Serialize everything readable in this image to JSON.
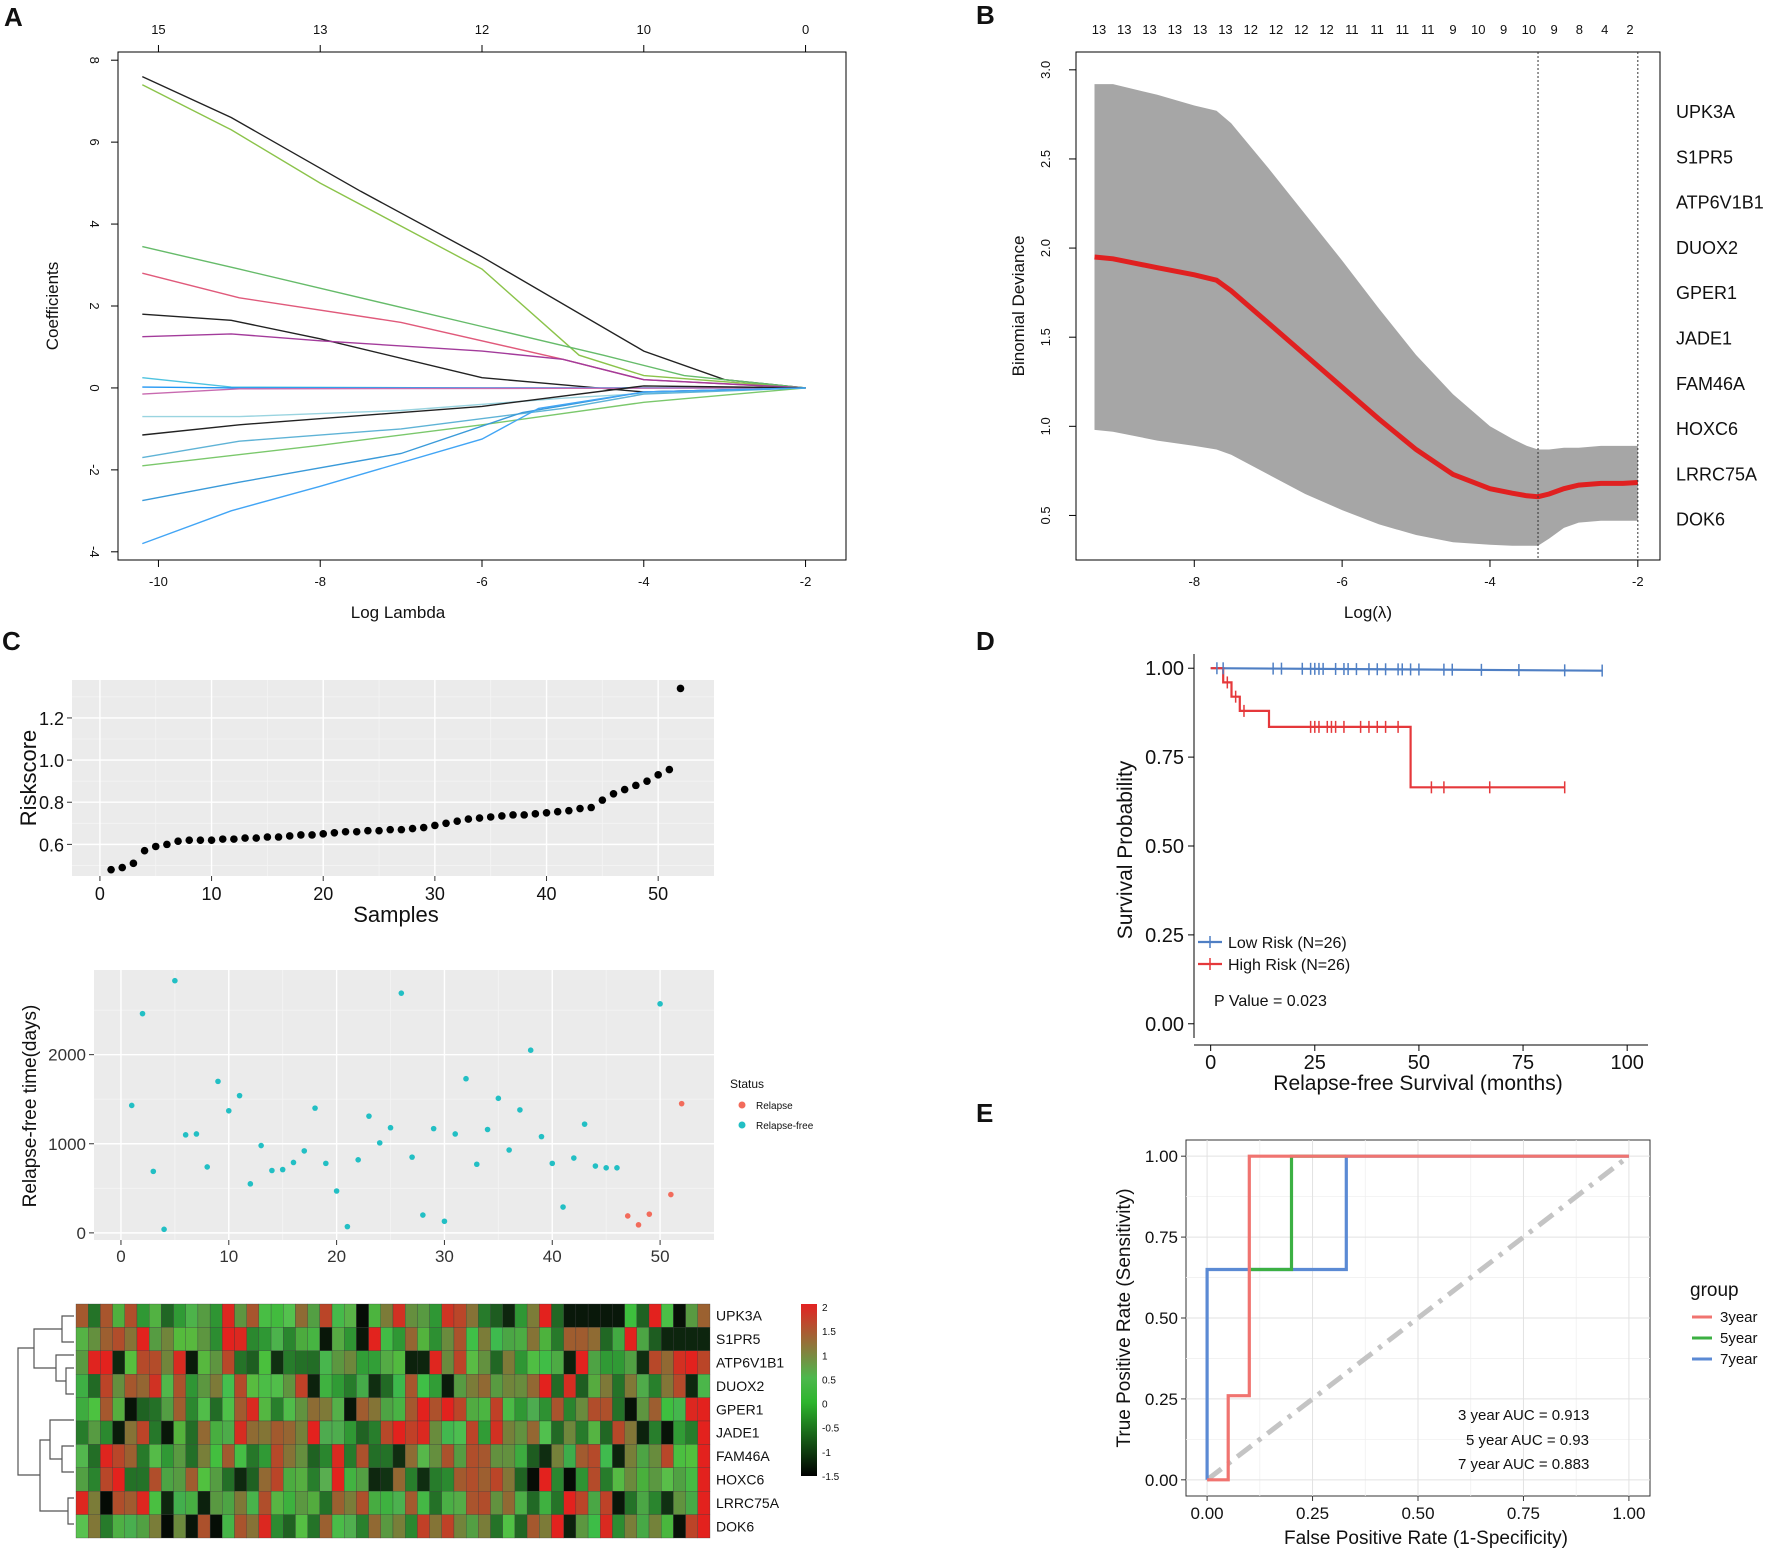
{
  "panel_labels": [
    "A",
    "B",
    "C",
    "D",
    "E"
  ],
  "chart_data": [
    {
      "id": "A",
      "type": "line",
      "xlabel": "Log Lambda",
      "ylabel": "Coefficients",
      "xlim": [
        -10.5,
        -1.5
      ],
      "ylim": [
        -4.2,
        8.2
      ],
      "x_ticks": [
        "-10",
        "-8",
        "-6",
        "-4",
        "-2"
      ],
      "y_ticks": [
        "-4",
        "-2",
        "0",
        "2",
        "4",
        "6",
        "8"
      ],
      "top_axis": [
        {
          "x": -10,
          "label": "15"
        },
        {
          "x": -8,
          "label": "13"
        },
        {
          "x": -6,
          "label": "12"
        },
        {
          "x": -4,
          "label": "10"
        },
        {
          "x": -2,
          "label": "0"
        }
      ],
      "series": [
        {
          "color": "#222222",
          "points": [
            [
              -10.2,
              7.6
            ],
            [
              -9.1,
              6.6
            ],
            [
              -7.5,
              4.8
            ],
            [
              -6,
              3.2
            ],
            [
              -4,
              0.9
            ],
            [
              -3,
              0.2
            ],
            [
              -2,
              0
            ]
          ]
        },
        {
          "color": "#8bc34a",
          "points": [
            [
              -10.2,
              7.4
            ],
            [
              -9.1,
              6.3
            ],
            [
              -8,
              5.0
            ],
            [
              -6,
              2.9
            ],
            [
              -4.8,
              0.8
            ],
            [
              -4,
              0.3
            ],
            [
              -2,
              0
            ]
          ]
        },
        {
          "color": "#66bb6a",
          "points": [
            [
              -10.2,
              3.45
            ],
            [
              -9,
              2.9
            ],
            [
              -6,
              1.5
            ],
            [
              -4.5,
              0.8
            ],
            [
              -3.5,
              0.3
            ],
            [
              -2,
              0
            ]
          ]
        },
        {
          "color": "#e05a7b",
          "points": [
            [
              -10.2,
              2.8
            ],
            [
              -9,
              2.2
            ],
            [
              -7,
              1.6
            ],
            [
              -5,
              0.7
            ],
            [
              -4,
              0.2
            ],
            [
              -2,
              0
            ]
          ]
        },
        {
          "color": "#222222",
          "points": [
            [
              -10.2,
              1.8
            ],
            [
              -9.1,
              1.65
            ],
            [
              -8,
              1.2
            ],
            [
              -6,
              0.25
            ],
            [
              -4,
              -0.1
            ],
            [
              -2,
              0
            ]
          ]
        },
        {
          "color": "#a33b9b",
          "points": [
            [
              -10.2,
              1.25
            ],
            [
              -9.1,
              1.32
            ],
            [
              -8,
              1.15
            ],
            [
              -6,
              0.9
            ],
            [
              -5,
              0.7
            ],
            [
              -4,
              0.2
            ],
            [
              -2,
              0
            ]
          ]
        },
        {
          "color": "#4fc3e0",
          "points": [
            [
              -10.2,
              0.25
            ],
            [
              -9.1,
              0.02
            ],
            [
              -6,
              0.0
            ],
            [
              -2,
              0
            ]
          ]
        },
        {
          "color": "#2196f3",
          "points": [
            [
              -10.2,
              0.02
            ],
            [
              -9,
              0.0
            ],
            [
              -2,
              0
            ]
          ]
        },
        {
          "color": "#c86ab0",
          "points": [
            [
              -10.2,
              -0.15
            ],
            [
              -9,
              -0.02
            ],
            [
              -2,
              0
            ]
          ]
        },
        {
          "color": "#9ad4e0",
          "points": [
            [
              -10.2,
              -0.7
            ],
            [
              -9,
              -0.7
            ],
            [
              -7,
              -0.55
            ],
            [
              -5,
              -0.25
            ],
            [
              -3.5,
              -0.08
            ],
            [
              -2,
              0
            ]
          ]
        },
        {
          "color": "#222222",
          "points": [
            [
              -10.2,
              -1.15
            ],
            [
              -9,
              -0.9
            ],
            [
              -6,
              -0.45
            ],
            [
              -4,
              0.05
            ],
            [
              -2,
              0
            ]
          ]
        },
        {
          "color": "#5fb3d6",
          "points": [
            [
              -10.2,
              -1.7
            ],
            [
              -9,
              -1.3
            ],
            [
              -7,
              -1.0
            ],
            [
              -5,
              -0.5
            ],
            [
              -4,
              -0.15
            ],
            [
              -2,
              0
            ]
          ]
        },
        {
          "color": "#7bc86c",
          "points": [
            [
              -10.2,
              -1.9
            ],
            [
              -8,
              -1.4
            ],
            [
              -6,
              -0.9
            ],
            [
              -4,
              -0.35
            ],
            [
              -2,
              0
            ]
          ]
        },
        {
          "color": "#3a9ad9",
          "points": [
            [
              -10.2,
              -2.75
            ],
            [
              -9,
              -2.3
            ],
            [
              -7,
              -1.6
            ],
            [
              -5.5,
              -0.6
            ],
            [
              -4,
              -0.1
            ],
            [
              -2,
              0
            ]
          ]
        },
        {
          "color": "#42a5f5",
          "points": [
            [
              -10.2,
              -3.8
            ],
            [
              -9.1,
              -3.0
            ],
            [
              -8,
              -2.4
            ],
            [
              -6,
              -1.25
            ],
            [
              -5.3,
              -0.5
            ],
            [
              -4,
              -0.1
            ],
            [
              -2,
              0
            ]
          ]
        }
      ]
    },
    {
      "id": "B",
      "type": "line",
      "xlabel": "Log(λ)",
      "ylabel": "Binomial Deviance",
      "xlim": [
        -9.6,
        -1.7
      ],
      "ylim": [
        0.25,
        3.1
      ],
      "x_ticks": [
        "-8",
        "-6",
        "-4",
        "-2"
      ],
      "y_ticks": [
        "0.5",
        "1.0",
        "1.5",
        "2.0",
        "2.5",
        "3.0"
      ],
      "top_axis": [
        "13",
        "13",
        "13",
        "13",
        "13",
        "13",
        "12",
        "12",
        "12",
        "12",
        "11",
        "11",
        "11",
        "11",
        "9",
        "10",
        "9",
        "10",
        "9",
        "8",
        "4",
        "2"
      ],
      "vlines": [
        -3.35,
        -2.0
      ],
      "x": [
        -9.35,
        -9.1,
        -8.5,
        -8.0,
        -7.7,
        -7.5,
        -7.0,
        -6.5,
        -6.0,
        -5.5,
        -5.0,
        -4.5,
        -4.0,
        -3.7,
        -3.5,
        -3.35,
        -3.2,
        -3.0,
        -2.8,
        -2.5,
        -2.2,
        -2.0
      ],
      "mean": [
        1.95,
        1.94,
        1.89,
        1.85,
        1.82,
        1.76,
        1.58,
        1.4,
        1.22,
        1.04,
        0.87,
        0.73,
        0.65,
        0.625,
        0.61,
        0.605,
        0.62,
        0.65,
        0.67,
        0.68,
        0.68,
        0.685
      ],
      "upper": [
        2.92,
        2.92,
        2.86,
        2.8,
        2.77,
        2.7,
        2.45,
        2.19,
        1.93,
        1.66,
        1.4,
        1.18,
        1.0,
        0.93,
        0.89,
        0.87,
        0.87,
        0.88,
        0.88,
        0.89,
        0.89,
        0.89
      ],
      "lower": [
        0.98,
        0.97,
        0.92,
        0.89,
        0.87,
        0.84,
        0.73,
        0.62,
        0.53,
        0.45,
        0.39,
        0.35,
        0.335,
        0.33,
        0.33,
        0.33,
        0.37,
        0.43,
        0.46,
        0.47,
        0.47,
        0.47
      ],
      "band_color": "#a6a6a6",
      "line_color": "#e02020",
      "gene_list": [
        "UPK3A",
        "S1PR5",
        "ATP6V1B1",
        "DUOX2",
        "GPER1",
        "JADE1",
        "FAM46A",
        "HOXC6",
        "LRRC75A",
        "DOK6"
      ]
    },
    {
      "id": "C1",
      "type": "scatter",
      "xlabel": "Samples",
      "ylabel": "Riskscore",
      "xlim": [
        -2.5,
        55
      ],
      "ylim": [
        0.45,
        1.38
      ],
      "x_ticks": [
        "0",
        "10",
        "20",
        "30",
        "40",
        "50"
      ],
      "y_ticks": [
        "0.6",
        "0.8",
        "1.0",
        "1.2"
      ],
      "x": [
        1,
        2,
        3,
        4,
        5,
        6,
        7,
        8,
        9,
        10,
        11,
        12,
        13,
        14,
        15,
        16,
        17,
        18,
        19,
        20,
        21,
        22,
        23,
        24,
        25,
        26,
        27,
        28,
        29,
        30,
        31,
        32,
        33,
        34,
        35,
        36,
        37,
        38,
        39,
        40,
        41,
        42,
        43,
        44,
        45,
        46,
        47,
        48,
        49,
        50,
        51,
        52
      ],
      "y": [
        0.48,
        0.49,
        0.51,
        0.57,
        0.59,
        0.6,
        0.615,
        0.62,
        0.62,
        0.62,
        0.625,
        0.625,
        0.63,
        0.63,
        0.635,
        0.635,
        0.64,
        0.645,
        0.645,
        0.65,
        0.655,
        0.66,
        0.66,
        0.665,
        0.665,
        0.67,
        0.67,
        0.675,
        0.68,
        0.69,
        0.7,
        0.71,
        0.72,
        0.725,
        0.73,
        0.735,
        0.74,
        0.74,
        0.745,
        0.75,
        0.755,
        0.76,
        0.77,
        0.775,
        0.81,
        0.84,
        0.86,
        0.88,
        0.9,
        0.93,
        0.955,
        1.34
      ]
    },
    {
      "id": "C2",
      "type": "scatter",
      "xlabel": "",
      "ylabel": "Relapse-free time(days)",
      "xlim": [
        -2.5,
        55
      ],
      "ylim": [
        -80,
        2950
      ],
      "x_ticks": [
        "0",
        "10",
        "20",
        "30",
        "40",
        "50"
      ],
      "y_ticks": [
        "0",
        "1000",
        "2000"
      ],
      "legend_title": "Status",
      "legend": [
        {
          "name": "Relapse",
          "color": "#f26b5b"
        },
        {
          "name": "Relapse-free",
          "color": "#22bfc4"
        }
      ],
      "x": [
        1,
        2,
        3,
        4,
        5,
        6,
        7,
        8,
        9,
        10,
        11,
        12,
        13,
        14,
        15,
        16,
        17,
        18,
        19,
        20,
        21,
        22,
        23,
        24,
        25,
        26,
        27,
        28,
        29,
        30,
        31,
        32,
        33,
        34,
        35,
        36,
        37,
        38,
        39,
        40,
        41,
        42,
        43,
        44,
        45,
        46,
        47,
        48,
        49,
        50,
        51,
        52
      ],
      "y": [
        1430,
        2460,
        690,
        40,
        2830,
        1100,
        1110,
        740,
        1700,
        1370,
        1540,
        550,
        980,
        700,
        710,
        790,
        920,
        1400,
        780,
        470,
        70,
        820,
        1310,
        1010,
        1180,
        2690,
        850,
        200,
        1170,
        130,
        1110,
        1730,
        770,
        1160,
        1510,
        930,
        1380,
        2050,
        1080,
        780,
        290,
        840,
        1220,
        750,
        730,
        730,
        190,
        90,
        210,
        2570,
        430,
        1450
      ],
      "status": [
        "F",
        "F",
        "F",
        "F",
        "F",
        "F",
        "F",
        "F",
        "F",
        "F",
        "F",
        "F",
        "F",
        "F",
        "F",
        "F",
        "F",
        "F",
        "F",
        "F",
        "F",
        "F",
        "F",
        "F",
        "F",
        "F",
        "F",
        "F",
        "F",
        "F",
        "F",
        "F",
        "F",
        "F",
        "F",
        "F",
        "F",
        "F",
        "F",
        "F",
        "F",
        "F",
        "F",
        "F",
        "F",
        "F",
        "R",
        "R",
        "R",
        "F",
        "R",
        "R"
      ]
    },
    {
      "id": "C3",
      "type": "heatmap",
      "rows": [
        "UPK3A",
        "S1PR5",
        "ATP6V1B1",
        "DUOX2",
        "GPER1",
        "JADE1",
        "FAM46A",
        "HOXC6",
        "LRRC75A",
        "DOK6"
      ],
      "n_cols": 52,
      "scale_ticks": [
        "2",
        "1.5",
        "1",
        "0.5",
        "0",
        "-0.5",
        "-1",
        "-1.5"
      ],
      "scale_range": [
        -1.5,
        2
      ]
    },
    {
      "id": "D",
      "type": "line",
      "xlabel": "Relapse-free Survival (months)",
      "ylabel": "Survival Probability",
      "xlim": [
        -4,
        105
      ],
      "ylim": [
        -0.04,
        1.04
      ],
      "x_ticks": [
        "0",
        "25",
        "50",
        "75",
        "100"
      ],
      "y_ticks": [
        "0.00",
        "0.25",
        "0.50",
        "0.75",
        "1.00"
      ],
      "series": [
        {
          "name": "Low Risk (N=26)",
          "color": "#4f7fc4",
          "x": [
            0,
            94
          ],
          "y": [
            1.0,
            0.993
          ]
        },
        {
          "name": "High Risk (N=26)",
          "color": "#e5383b",
          "x": [
            0,
            3,
            3,
            5,
            5,
            7,
            7,
            14,
            14,
            48,
            48,
            85
          ],
          "y": [
            1.0,
            1.0,
            0.96,
            0.96,
            0.92,
            0.92,
            0.88,
            0.88,
            0.835,
            0.835,
            0.665,
            0.665
          ]
        }
      ],
      "p_value": "P Value = 0.023"
    },
    {
      "id": "E",
      "type": "line",
      "xlabel": "False Positive Rate (1-Specificity)",
      "ylabel": "True Positive Rate (Sensitivity)",
      "xlim": [
        -0.05,
        1.05
      ],
      "ylim": [
        -0.05,
        1.05
      ],
      "x_ticks": [
        "0.00",
        "0.25",
        "0.50",
        "0.75",
        "1.00"
      ],
      "y_ticks": [
        "0.00",
        "0.25",
        "0.50",
        "0.75",
        "1.00"
      ],
      "legend_title": "group",
      "series": [
        {
          "name": "3year",
          "color": "#f07470",
          "x": [
            0,
            0.05,
            0.05,
            0.1,
            0.1,
            0.2,
            1
          ],
          "y": [
            0,
            0,
            0.26,
            0.26,
            1.0,
            1.0,
            1.0
          ]
        },
        {
          "name": "5year",
          "color": "#3cb043",
          "x": [
            0.1,
            0.2,
            0.2,
            0.33
          ],
          "y": [
            0.65,
            0.65,
            1.0,
            1.0
          ]
        },
        {
          "name": "7year",
          "color": "#5b8ad4",
          "x": [
            0,
            0,
            0.33,
            0.33,
            1
          ],
          "y": [
            0,
            0.65,
            0.65,
            1.0,
            1.0
          ]
        }
      ],
      "auc_labels": [
        "3 year  AUC = 0.913",
        "5 year  AUC = 0.93",
        "7 year  AUC = 0.883"
      ]
    }
  ]
}
